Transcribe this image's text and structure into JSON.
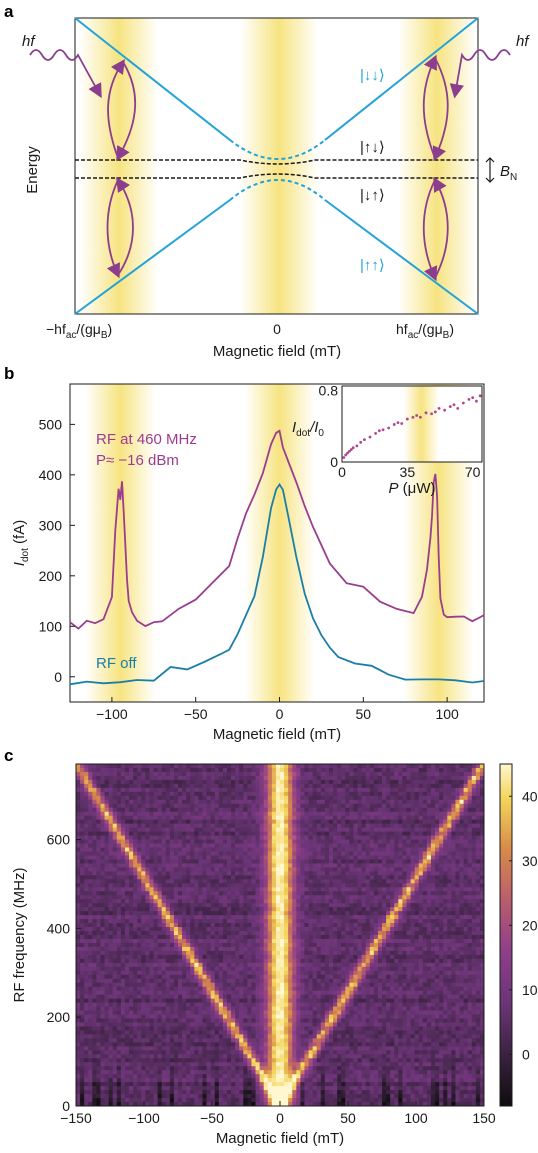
{
  "panel_labels": [
    "a",
    "b",
    "c"
  ],
  "panel_a": {
    "ylabel": "Energy",
    "xlabel": "Magnetic field (mT)",
    "x_ticks": [
      "−hf",
      "ac",
      "/(gμ",
      "B",
      ")",
      "0",
      "hf",
      "ac",
      "/(gμ",
      "B",
      ")"
    ],
    "tick_left_main": "−hf",
    "tick_left_sub": "ac",
    "tick_left_mid": "/(gμ",
    "tick_left_sub2": "B",
    "tick_left_end": ")",
    "tick_zero": "0",
    "tick_right_main": "hf",
    "tick_right_sub": "ac",
    "tick_right_mid": "/(gμ",
    "tick_right_sub2": "B",
    "tick_right_end": ")",
    "hf_left": "hf",
    "hf_right": "hf",
    "state_dd": "|↓↓⟩",
    "state_ud": "|↑↓⟩",
    "state_du": "|↓↑⟩",
    "state_uu": "|↑↑⟩",
    "bn_label_main": "B",
    "bn_label_sub": "N",
    "colors": {
      "line": "#22a3d9",
      "arrow": "#8b3d8e",
      "band": "#f6e27a"
    }
  },
  "chart_data": [
    {
      "type": "line",
      "panel": "b",
      "xlabel": "Magnetic field (mT)",
      "ylabel_main": "I",
      "ylabel_sub": "dot",
      "ylabel_unit": " (fA)",
      "xlim": [
        -125,
        122
      ],
      "ylim": [
        -50,
        580
      ],
      "x_ticks": [
        -100,
        -50,
        0,
        50,
        100
      ],
      "y_ticks": [
        0,
        100,
        200,
        300,
        400,
        500
      ],
      "annotation_rf_on_1": "RF at 460 MHz",
      "annotation_rf_on_2": "P≈ −16 dBm",
      "annotation_rf_off": "RF off",
      "series": [
        {
          "name": "RF at 460 MHz",
          "color": "#9b3d8f",
          "x": [
            -125,
            -120,
            -115,
            -110,
            -105,
            -100,
            -98,
            -96,
            -95,
            -94,
            -93,
            -92,
            -91,
            -90,
            -88,
            -85,
            -80,
            -75,
            -70,
            -60,
            -50,
            -40,
            -30,
            -25,
            -20,
            -15,
            -10,
            -5,
            -2,
            0,
            2,
            5,
            10,
            15,
            20,
            25,
            30,
            40,
            50,
            60,
            70,
            80,
            85,
            88,
            90,
            91,
            92,
            93,
            94,
            95,
            96,
            98,
            100,
            105,
            110,
            115,
            120,
            122
          ],
          "y": [
            108,
            110,
            112,
            115,
            120,
            165,
            300,
            375,
            340,
            380,
            330,
            260,
            180,
            150,
            125,
            118,
            115,
            115,
            120,
            140,
            165,
            195,
            230,
            265,
            310,
            350,
            395,
            445,
            470,
            478,
            470,
            440,
            390,
            345,
            300,
            270,
            240,
            200,
            170,
            145,
            128,
            125,
            150,
            200,
            270,
            330,
            390,
            410,
            360,
            240,
            160,
            125,
            115,
            112,
            110,
            108,
            110,
            110
          ]
        },
        {
          "name": "RF off",
          "color": "#1a7fa8",
          "x": [
            -125,
            -115,
            -105,
            -95,
            -85,
            -75,
            -65,
            -55,
            -45,
            -35,
            -30,
            -25,
            -20,
            -15,
            -10,
            -5,
            -2,
            0,
            2,
            5,
            10,
            15,
            20,
            25,
            30,
            35,
            45,
            55,
            65,
            75,
            85,
            95,
            105,
            115,
            122
          ],
          "y": [
            -5,
            0,
            2,
            -2,
            3,
            0,
            5,
            10,
            18,
            35,
            50,
            70,
            110,
            170,
            250,
            340,
            385,
            392,
            380,
            335,
            240,
            160,
            105,
            70,
            48,
            32,
            18,
            10,
            5,
            2,
            0,
            0,
            -2,
            0,
            -3
          ]
        }
      ]
    },
    {
      "type": "scatter",
      "panel": "b-inset",
      "xlabel_main": "P",
      "xlabel_unit": " (μW)",
      "ylabel_main": "I",
      "ylabel_sub1": "dot",
      "ylabel_mid": "/I",
      "ylabel_sub2": "0",
      "xlim": [
        0,
        75
      ],
      "ylim": [
        0,
        0.85
      ],
      "x_ticks": [
        0,
        35,
        70
      ],
      "y_ticks": [
        0,
        0.8
      ],
      "color": "#b0478e",
      "x": [
        1,
        2,
        3,
        4,
        5,
        6,
        8,
        10,
        12,
        15,
        18,
        20,
        22,
        25,
        28,
        30,
        32,
        35,
        38,
        40,
        42,
        45,
        48,
        50,
        52,
        55,
        58,
        60,
        62,
        65,
        68,
        70,
        72,
        74
      ],
      "y": [
        0.05,
        0.08,
        0.1,
        0.12,
        0.14,
        0.16,
        0.18,
        0.22,
        0.25,
        0.28,
        0.32,
        0.35,
        0.36,
        0.38,
        0.42,
        0.44,
        0.43,
        0.48,
        0.5,
        0.52,
        0.5,
        0.55,
        0.54,
        0.56,
        0.6,
        0.58,
        0.62,
        0.64,
        0.6,
        0.66,
        0.7,
        0.72,
        0.68,
        0.74
      ]
    },
    {
      "type": "heatmap",
      "panel": "c",
      "xlabel": "Magnetic field (mT)",
      "ylabel": "RF frequency (MHz)",
      "xlim": [
        -150,
        150
      ],
      "ylim": [
        0,
        770
      ],
      "x_ticks": [
        -150,
        -100,
        -50,
        0,
        50,
        100,
        150
      ],
      "y_ticks": [
        0,
        200,
        400,
        600
      ],
      "colorbar_ticks": [
        0,
        10,
        20,
        30,
        40
      ],
      "colorbar_range": [
        -8,
        45
      ],
      "colormap": [
        "#0d0d0d",
        "#3b2240",
        "#6b3577",
        "#8e3e8a",
        "#b85d6e",
        "#d88a4a",
        "#f3d55a",
        "#fff7d0"
      ],
      "background_level": 5,
      "resonance_slope_mhz_per_mt": 5.15,
      "central_line_level": 38
    }
  ]
}
